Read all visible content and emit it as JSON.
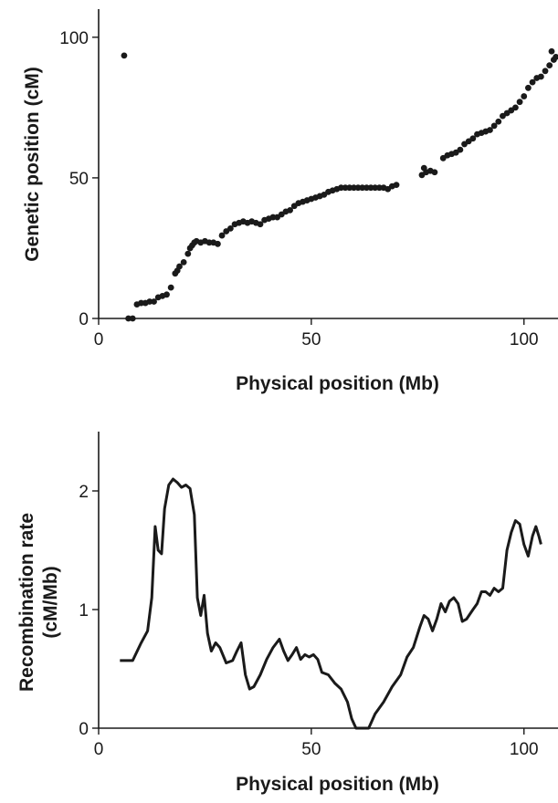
{
  "chart_data": [
    {
      "type": "scatter",
      "title": "",
      "xlabel": "Physical position (Mb)",
      "ylabel": "Genetic position (cM)",
      "xlim": [
        0,
        108
      ],
      "ylim": [
        0,
        110
      ],
      "xticks": [
        0,
        50,
        100
      ],
      "yticks": [
        0,
        50,
        100
      ],
      "grid": false,
      "points": [
        [
          6,
          93.5
        ],
        [
          7,
          0
        ],
        [
          8,
          0
        ],
        [
          9,
          5
        ],
        [
          10,
          5.5
        ],
        [
          11,
          5.5
        ],
        [
          12,
          6
        ],
        [
          13,
          6
        ],
        [
          14,
          7.5
        ],
        [
          15,
          8
        ],
        [
          16,
          8.5
        ],
        [
          17,
          11
        ],
        [
          18,
          16
        ],
        [
          18.5,
          17
        ],
        [
          19,
          18.5
        ],
        [
          20,
          20
        ],
        [
          21,
          23
        ],
        [
          21.5,
          25
        ],
        [
          22,
          26
        ],
        [
          22.5,
          27
        ],
        [
          23,
          27.5
        ],
        [
          24,
          27
        ],
        [
          25,
          27.5
        ],
        [
          26,
          27
        ],
        [
          27,
          27
        ],
        [
          28,
          26.5
        ],
        [
          29,
          29.5
        ],
        [
          30,
          31
        ],
        [
          31,
          32
        ],
        [
          32,
          33.5
        ],
        [
          33,
          34
        ],
        [
          34,
          34.5
        ],
        [
          35,
          34
        ],
        [
          36,
          34.5
        ],
        [
          37,
          34
        ],
        [
          38,
          33.5
        ],
        [
          39,
          35
        ],
        [
          40,
          35.5
        ],
        [
          41,
          36
        ],
        [
          42,
          36
        ],
        [
          43,
          37
        ],
        [
          44,
          38
        ],
        [
          45,
          38.5
        ],
        [
          46,
          40
        ],
        [
          47,
          41
        ],
        [
          48,
          41.5
        ],
        [
          49,
          42
        ],
        [
          50,
          42.5
        ],
        [
          51,
          43
        ],
        [
          52,
          43.5
        ],
        [
          53,
          44
        ],
        [
          54,
          45
        ],
        [
          55,
          45.5
        ],
        [
          56,
          46
        ],
        [
          57,
          46.5
        ],
        [
          58,
          46.5
        ],
        [
          59,
          46.5
        ],
        [
          60,
          46.5
        ],
        [
          61,
          46.5
        ],
        [
          62,
          46.5
        ],
        [
          63,
          46.5
        ],
        [
          64,
          46.5
        ],
        [
          65,
          46.5
        ],
        [
          66,
          46.5
        ],
        [
          67,
          46.5
        ],
        [
          68,
          46
        ],
        [
          69,
          47
        ],
        [
          70,
          47.5
        ],
        [
          76,
          51
        ],
        [
          76.5,
          53.5
        ],
        [
          77,
          52
        ],
        [
          78,
          52.5
        ],
        [
          79,
          52
        ],
        [
          81,
          57
        ],
        [
          82,
          58
        ],
        [
          83,
          58.5
        ],
        [
          84,
          59
        ],
        [
          85,
          60
        ],
        [
          86,
          62
        ],
        [
          87,
          63
        ],
        [
          88,
          64
        ],
        [
          89,
          65.5
        ],
        [
          90,
          66
        ],
        [
          91,
          66.5
        ],
        [
          92,
          67
        ],
        [
          93,
          68.5
        ],
        [
          94,
          70
        ],
        [
          95,
          72
        ],
        [
          96,
          73
        ],
        [
          97,
          74
        ],
        [
          98,
          75
        ],
        [
          99,
          77
        ],
        [
          100,
          79
        ],
        [
          101,
          82
        ],
        [
          102,
          84
        ],
        [
          103,
          85.5
        ],
        [
          104,
          86
        ],
        [
          105,
          88
        ],
        [
          106,
          90
        ],
        [
          106.5,
          95
        ],
        [
          107,
          92
        ],
        [
          107.5,
          93
        ]
      ]
    },
    {
      "type": "line",
      "title": "",
      "xlabel": "Physical position (Mb)",
      "ylabel": "Recombination rate (cM/Mb)",
      "ylabel_lines": [
        "Recombination rate",
        "(cM/Mb)"
      ],
      "xlim": [
        0,
        108
      ],
      "ylim": [
        0,
        2.5
      ],
      "xticks": [
        0,
        50,
        100
      ],
      "yticks": [
        0,
        1,
        2
      ],
      "grid": false,
      "points": [
        [
          5,
          0.57
        ],
        [
          8,
          0.57
        ],
        [
          10,
          0.72
        ],
        [
          11.5,
          0.82
        ],
        [
          12.5,
          1.1
        ],
        [
          13.3,
          1.7
        ],
        [
          14,
          1.5
        ],
        [
          14.8,
          1.47
        ],
        [
          15.5,
          1.85
        ],
        [
          16.5,
          2.05
        ],
        [
          17.5,
          2.1
        ],
        [
          18.5,
          2.07
        ],
        [
          19.5,
          2.03
        ],
        [
          20.5,
          2.05
        ],
        [
          21.5,
          2.02
        ],
        [
          22.5,
          1.8
        ],
        [
          23.2,
          1.1
        ],
        [
          24,
          0.95
        ],
        [
          24.8,
          1.12
        ],
        [
          25.6,
          0.8
        ],
        [
          26.5,
          0.65
        ],
        [
          27.5,
          0.72
        ],
        [
          28.5,
          0.68
        ],
        [
          30,
          0.55
        ],
        [
          31.5,
          0.57
        ],
        [
          32.5,
          0.65
        ],
        [
          33.5,
          0.72
        ],
        [
          34.5,
          0.45
        ],
        [
          35.5,
          0.33
        ],
        [
          36.5,
          0.35
        ],
        [
          38,
          0.45
        ],
        [
          39.5,
          0.58
        ],
        [
          41,
          0.68
        ],
        [
          42.5,
          0.75
        ],
        [
          43.5,
          0.65
        ],
        [
          44.5,
          0.57
        ],
        [
          45.5,
          0.62
        ],
        [
          46.5,
          0.68
        ],
        [
          47.5,
          0.58
        ],
        [
          48.5,
          0.62
        ],
        [
          49.5,
          0.6
        ],
        [
          50.5,
          0.62
        ],
        [
          51.5,
          0.58
        ],
        [
          52.5,
          0.47
        ],
        [
          54,
          0.45
        ],
        [
          55.5,
          0.38
        ],
        [
          57,
          0.33
        ],
        [
          58.5,
          0.22
        ],
        [
          59.5,
          0.08
        ],
        [
          60.5,
          0
        ],
        [
          63.5,
          0
        ],
        [
          65,
          0.12
        ],
        [
          67,
          0.22
        ],
        [
          69,
          0.35
        ],
        [
          71,
          0.45
        ],
        [
          72.5,
          0.6
        ],
        [
          74,
          0.68
        ],
        [
          75.5,
          0.85
        ],
        [
          76.5,
          0.95
        ],
        [
          77.5,
          0.92
        ],
        [
          78.5,
          0.82
        ],
        [
          79.5,
          0.92
        ],
        [
          80.5,
          1.05
        ],
        [
          81.5,
          0.98
        ],
        [
          82.5,
          1.07
        ],
        [
          83.5,
          1.1
        ],
        [
          84.5,
          1.05
        ],
        [
          85.5,
          0.9
        ],
        [
          86.5,
          0.92
        ],
        [
          88,
          1.0
        ],
        [
          89,
          1.05
        ],
        [
          90,
          1.15
        ],
        [
          91,
          1.15
        ],
        [
          92,
          1.12
        ],
        [
          93,
          1.18
        ],
        [
          94,
          1.15
        ],
        [
          95,
          1.18
        ],
        [
          96,
          1.5
        ],
        [
          97,
          1.65
        ],
        [
          98,
          1.75
        ],
        [
          99,
          1.72
        ],
        [
          100,
          1.55
        ],
        [
          101,
          1.45
        ],
        [
          102,
          1.62
        ],
        [
          102.8,
          1.7
        ],
        [
          103.5,
          1.62
        ],
        [
          104,
          1.55
        ]
      ]
    }
  ]
}
